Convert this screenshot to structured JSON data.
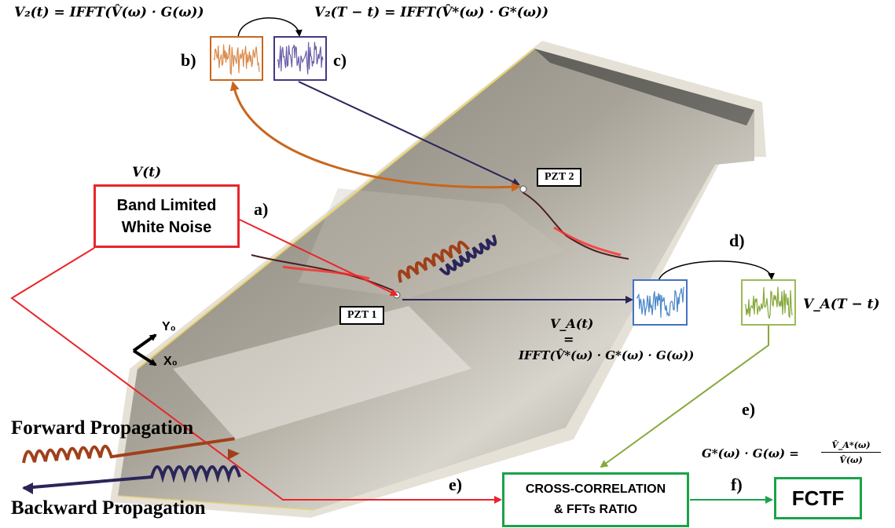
{
  "labels": {
    "a": "a)",
    "b": "b)",
    "c": "c)",
    "d": "d)",
    "e_top": "e)",
    "e_bottom": "e)",
    "f": "f)"
  },
  "equations": {
    "v2_t": "V₂(t) = IFFT(V̂(ω) · G(ω))",
    "v2_rev": "V₂(T − t) = IFFT(V̂*(ω) · G*(ω))",
    "v_t": "V(t)",
    "va_t": "V_A(t)",
    "va_eq": "=",
    "va_ifft": "IFFT(V̂*(ω) · G*(ω) · G(ω))",
    "va_rev": "V_A(T − t)",
    "ratio_lhs": "G*(ω) · G(ω) =",
    "ratio_num": "V̂_A*(ω)",
    "ratio_den": "V̂(ω)"
  },
  "sensors": {
    "pzt1": "PZT 1",
    "pzt2": "PZT 2"
  },
  "axes": {
    "y": "Y₀",
    "x": "X₀"
  },
  "boxes": {
    "noise_line1": "Band Limited",
    "noise_line2": "White Noise",
    "xcorr_line1": "CROSS-CORRELATION",
    "xcorr_line2": "& FFTs RATIO",
    "fctf": "FCTF"
  },
  "legend": {
    "forward": "Forward Propagation",
    "backward": "Backward Propagation"
  },
  "colors": {
    "red": "#e8262b",
    "green": "#1aa34a",
    "orange": "#c9661c",
    "navy": "#2a2559",
    "blue": "#4472c4",
    "olive": "#86a83c"
  }
}
